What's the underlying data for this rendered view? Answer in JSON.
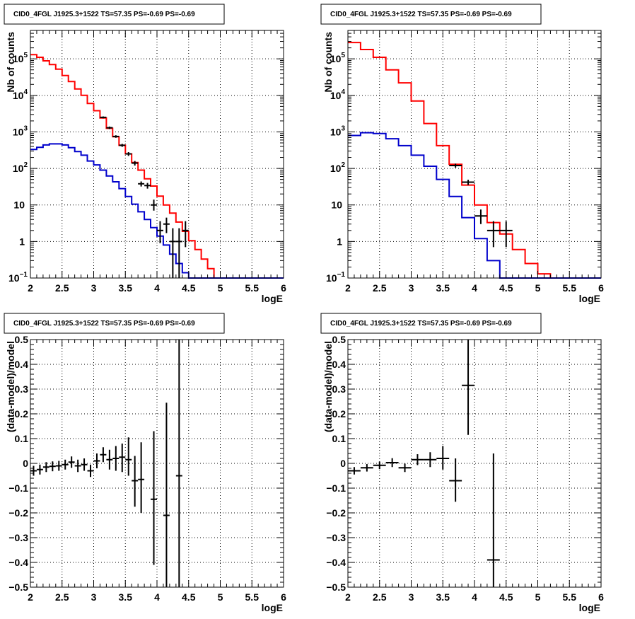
{
  "chart_data": [
    {
      "type": "line",
      "title": "CID0_4FGL J1925.3+1522 TS=57.35 PS=-0.69 PS=-0.69",
      "xlabel": "logE",
      "ylabel": "Nb of counts",
      "xlim": [
        2,
        6
      ],
      "ylim": [
        0.1,
        600000
      ],
      "yscale": "log",
      "grid": true,
      "x_ticks": [
        "2",
        "2.5",
        "3",
        "3.5",
        "4",
        "4.5",
        "5",
        "5.5",
        "6"
      ],
      "y_ticks": [
        {
          "v": 0.1,
          "base": "10",
          "exp": "−1"
        },
        {
          "v": 1,
          "base": "1",
          "exp": ""
        },
        {
          "v": 10,
          "base": "10",
          "exp": ""
        },
        {
          "v": 100,
          "base": "10",
          "exp": "2"
        },
        {
          "v": 1000,
          "base": "10",
          "exp": "3"
        },
        {
          "v": 10000,
          "base": "10",
          "exp": "4"
        },
        {
          "v": 100000,
          "base": "10",
          "exp": "5"
        }
      ],
      "bin_edges": [
        2.0,
        2.1,
        2.2,
        2.3,
        2.4,
        2.5,
        2.6,
        2.7,
        2.8,
        2.9,
        3.0,
        3.1,
        3.2,
        3.3,
        3.4,
        3.5,
        3.6,
        3.7,
        3.8,
        3.9,
        4.0,
        4.1,
        4.2,
        4.3,
        4.4,
        4.5,
        4.6,
        4.7,
        4.8,
        4.9,
        5.0,
        5.1,
        5.2,
        5.3,
        5.4,
        5.5,
        5.6,
        5.7,
        5.8,
        5.9,
        6.0
      ],
      "series": [
        {
          "color": "#ff0000",
          "values": [
            130000,
            110000,
            88000,
            70000,
            52000,
            35000,
            24000,
            15000,
            10000,
            6000,
            3800,
            2400,
            1250,
            740,
            430,
            250,
            145,
            90,
            52,
            33,
            17.5,
            10,
            6,
            3.4,
            1.9,
            1.05,
            0.6,
            0.33,
            0.18,
            0.1,
            0.1,
            0.1,
            0.1,
            0.1,
            0.1,
            0.1,
            0.1,
            0.1,
            0.1,
            0.1
          ]
        },
        {
          "color": "#0000cc",
          "values": [
            330,
            380,
            440,
            470,
            470,
            440,
            370,
            290,
            230,
            160,
            125,
            90,
            62,
            43,
            28,
            17,
            10.5,
            6.5,
            4,
            2.4,
            1.4,
            0.8,
            0.45,
            0.25,
            0.14,
            0.1,
            0.1,
            0.1,
            0.1,
            0.1,
            0.1,
            0.1,
            0.1,
            0.1,
            0.1,
            0.1,
            0.1,
            0.1,
            0.1,
            0.1
          ]
        }
      ],
      "data_points": [
        {
          "x": 3.15,
          "y": 2500,
          "ylo": 2350,
          "yhi": 2650,
          "xerr": 0.05
        },
        {
          "x": 3.25,
          "y": 1300,
          "ylo": 1200,
          "yhi": 1400,
          "xerr": 0.05
        },
        {
          "x": 3.35,
          "y": 750,
          "ylo": 690,
          "yhi": 810,
          "xerr": 0.05
        },
        {
          "x": 3.45,
          "y": 430,
          "ylo": 390,
          "yhi": 470,
          "xerr": 0.05
        },
        {
          "x": 3.55,
          "y": 250,
          "ylo": 220,
          "yhi": 280,
          "xerr": 0.05
        },
        {
          "x": 3.65,
          "y": 140,
          "ylo": 120,
          "yhi": 160,
          "xerr": 0.05
        },
        {
          "x": 3.75,
          "y": 38,
          "ylo": 32,
          "yhi": 44,
          "xerr": 0.05
        },
        {
          "x": 3.85,
          "y": 34,
          "ylo": 28,
          "yhi": 40,
          "xerr": 0.05
        },
        {
          "x": 3.95,
          "y": 10,
          "ylo": 7,
          "yhi": 14,
          "xerr": 0.05
        },
        {
          "x": 4.05,
          "y": 2,
          "ylo": 0.9,
          "yhi": 3.6,
          "xerr": 0.05
        },
        {
          "x": 4.15,
          "y": 3,
          "ylo": 1.7,
          "yhi": 4.5,
          "xerr": 0.05
        },
        {
          "x": 4.25,
          "y": 1,
          "ylo": 0.1,
          "yhi": 2.3,
          "xerr": 0.05
        },
        {
          "x": 4.35,
          "y": 1,
          "ylo": 0.1,
          "yhi": 2.3,
          "xerr": 0.05
        },
        {
          "x": 4.45,
          "y": 2,
          "ylo": 0.7,
          "yhi": 3.6,
          "xerr": 0.05
        }
      ]
    },
    {
      "type": "line",
      "title": "CID0_4FGL J1925.3+1522 TS=57.35 PS=-0.69 PS=-0.69",
      "xlabel": "logE",
      "ylabel": "Nb of counts",
      "xlim": [
        2,
        6
      ],
      "ylim": [
        0.1,
        600000
      ],
      "yscale": "log",
      "grid": true,
      "x_ticks": [
        "2",
        "2.5",
        "3",
        "3.5",
        "4",
        "4.5",
        "5",
        "5.5",
        "6"
      ],
      "y_ticks": [
        {
          "v": 0.1,
          "base": "10",
          "exp": "−1"
        },
        {
          "v": 1,
          "base": "1",
          "exp": ""
        },
        {
          "v": 10,
          "base": "10",
          "exp": ""
        },
        {
          "v": 100,
          "base": "10",
          "exp": "2"
        },
        {
          "v": 1000,
          "base": "10",
          "exp": "3"
        },
        {
          "v": 10000,
          "base": "10",
          "exp": "4"
        },
        {
          "v": 100000,
          "base": "10",
          "exp": "5"
        }
      ],
      "bin_edges": [
        2.0,
        2.2,
        2.4,
        2.6,
        2.8,
        3.0,
        3.2,
        3.4,
        3.6,
        3.8,
        4.0,
        4.2,
        4.4,
        4.6,
        4.8,
        5.0,
        5.2,
        5.4,
        5.6,
        5.8,
        6.0
      ],
      "series": [
        {
          "color": "#ff0000",
          "values": [
            280000,
            180000,
            110000,
            50000,
            22000,
            7000,
            1700,
            420,
            130,
            35,
            10,
            3.3,
            1.6,
            0.6,
            0.25,
            0.13,
            0.1,
            0.1,
            0.1,
            0.1
          ]
        },
        {
          "color": "#0000cc",
          "values": [
            800,
            950,
            900,
            650,
            420,
            230,
            115,
            50,
            17,
            4.5,
            1.2,
            0.3,
            0.1,
            0.1,
            0.1,
            0.1,
            0.1,
            0.1,
            0.1,
            0.1
          ]
        }
      ],
      "data_points": [
        {
          "x": 3.7,
          "y": 120,
          "ylo": 105,
          "yhi": 135,
          "xerr": 0.1
        },
        {
          "x": 3.9,
          "y": 42,
          "ylo": 35,
          "yhi": 49,
          "xerr": 0.1
        },
        {
          "x": 4.1,
          "y": 5,
          "ylo": 3,
          "yhi": 7.5,
          "xerr": 0.1
        },
        {
          "x": 4.3,
          "y": 2,
          "ylo": 0.7,
          "yhi": 3.6,
          "xerr": 0.1
        },
        {
          "x": 4.5,
          "y": 2,
          "ylo": 0.7,
          "yhi": 3.6,
          "xerr": 0.1
        }
      ]
    },
    {
      "type": "scatter",
      "title": "CID0_4FGL J1925.3+1522 TS=57.35 PS=-0.69 PS=-0.69",
      "xlabel": "logE",
      "ylabel": "(data-model)/model",
      "xlim": [
        2,
        6
      ],
      "ylim": [
        -0.5,
        0.5
      ],
      "grid": true,
      "x_ticks": [
        "2",
        "2.5",
        "3",
        "3.5",
        "4",
        "4.5",
        "5",
        "5.5",
        "6"
      ],
      "y_ticks": [
        {
          "v": -0.5,
          "label": "−0.5"
        },
        {
          "v": -0.4,
          "label": "−0.4"
        },
        {
          "v": -0.3,
          "label": "−0.3"
        },
        {
          "v": -0.2,
          "label": "−0.2"
        },
        {
          "v": -0.1,
          "label": "−0.1"
        },
        {
          "v": 0,
          "label": "0"
        },
        {
          "v": 0.1,
          "label": "0.1"
        },
        {
          "v": 0.2,
          "label": "0.2"
        },
        {
          "v": 0.3,
          "label": "0.3"
        },
        {
          "v": 0.4,
          "label": "0.4"
        },
        {
          "v": 0.5,
          "label": "0.5"
        }
      ],
      "data_points": [
        {
          "x": 2.05,
          "y": -0.03,
          "ylo": -0.05,
          "yhi": -0.01,
          "xerr": 0.05
        },
        {
          "x": 2.15,
          "y": -0.025,
          "ylo": -0.045,
          "yhi": -0.005,
          "xerr": 0.05
        },
        {
          "x": 2.25,
          "y": -0.015,
          "ylo": -0.035,
          "yhi": 0.005,
          "xerr": 0.05
        },
        {
          "x": 2.35,
          "y": -0.012,
          "ylo": -0.032,
          "yhi": 0.008,
          "xerr": 0.05
        },
        {
          "x": 2.45,
          "y": -0.01,
          "ylo": -0.03,
          "yhi": 0.01,
          "xerr": 0.05
        },
        {
          "x": 2.55,
          "y": -0.005,
          "ylo": -0.025,
          "yhi": 0.015,
          "xerr": 0.05
        },
        {
          "x": 2.65,
          "y": 0.005,
          "ylo": -0.018,
          "yhi": 0.028,
          "xerr": 0.05
        },
        {
          "x": 2.75,
          "y": -0.01,
          "ylo": -0.035,
          "yhi": 0.015,
          "xerr": 0.05
        },
        {
          "x": 2.85,
          "y": -0.005,
          "ylo": -0.03,
          "yhi": 0.02,
          "xerr": 0.05
        },
        {
          "x": 2.95,
          "y": -0.03,
          "ylo": -0.055,
          "yhi": -0.005,
          "xerr": 0.05
        },
        {
          "x": 3.05,
          "y": 0.01,
          "ylo": -0.02,
          "yhi": 0.04,
          "xerr": 0.05
        },
        {
          "x": 3.15,
          "y": 0.035,
          "ylo": 0.005,
          "yhi": 0.065,
          "xerr": 0.05
        },
        {
          "x": 3.25,
          "y": 0.015,
          "ylo": -0.025,
          "yhi": 0.055,
          "xerr": 0.05
        },
        {
          "x": 3.35,
          "y": 0.02,
          "ylo": -0.03,
          "yhi": 0.07,
          "xerr": 0.05
        },
        {
          "x": 3.45,
          "y": 0.025,
          "ylo": -0.035,
          "yhi": 0.08,
          "xerr": 0.05
        },
        {
          "x": 3.55,
          "y": 0.015,
          "ylo": -0.05,
          "yhi": 0.105,
          "xerr": 0.05
        },
        {
          "x": 3.65,
          "y": -0.07,
          "ylo": -0.175,
          "yhi": 0.03,
          "xerr": 0.05
        },
        {
          "x": 3.75,
          "y": -0.065,
          "ylo": -0.2,
          "yhi": 0.085,
          "xerr": 0.05
        },
        {
          "x": 3.95,
          "y": -0.145,
          "ylo": -0.41,
          "yhi": 0.13,
          "xerr": 0.05
        },
        {
          "x": 4.15,
          "y": -0.21,
          "ylo": -0.5,
          "yhi": 0.245,
          "xerr": 0.05
        },
        {
          "x": 4.35,
          "y": -0.05,
          "ylo": -0.5,
          "yhi": 0.5,
          "xerr": 0.05
        }
      ]
    },
    {
      "type": "scatter",
      "title": "CID0_4FGL J1925.3+1522 TS=57.35 PS=-0.69 PS=-0.69",
      "xlabel": "logE",
      "ylabel": "(data-model)/model",
      "xlim": [
        2,
        6
      ],
      "ylim": [
        -0.5,
        0.5
      ],
      "grid": true,
      "x_ticks": [
        "2",
        "2.5",
        "3",
        "3.5",
        "4",
        "4.5",
        "5",
        "5.5",
        "6"
      ],
      "y_ticks": [
        {
          "v": -0.5,
          "label": "−0.5"
        },
        {
          "v": -0.4,
          "label": "−0.4"
        },
        {
          "v": -0.3,
          "label": "−0.3"
        },
        {
          "v": -0.2,
          "label": "−0.2"
        },
        {
          "v": -0.1,
          "label": "−0.1"
        },
        {
          "v": 0,
          "label": "0"
        },
        {
          "v": 0.1,
          "label": "0.1"
        },
        {
          "v": 0.2,
          "label": "0.2"
        },
        {
          "v": 0.3,
          "label": "0.3"
        },
        {
          "v": 0.4,
          "label": "0.4"
        },
        {
          "v": 0.5,
          "label": "0.5"
        }
      ],
      "data_points": [
        {
          "x": 2.1,
          "y": -0.03,
          "ylo": -0.045,
          "yhi": -0.015,
          "xerr": 0.1
        },
        {
          "x": 2.3,
          "y": -0.018,
          "ylo": -0.033,
          "yhi": -0.003,
          "xerr": 0.1
        },
        {
          "x": 2.5,
          "y": -0.008,
          "ylo": -0.023,
          "yhi": 0.007,
          "xerr": 0.1
        },
        {
          "x": 2.7,
          "y": 0.003,
          "ylo": -0.015,
          "yhi": 0.021,
          "xerr": 0.1
        },
        {
          "x": 2.9,
          "y": -0.018,
          "ylo": -0.035,
          "yhi": -0.001,
          "xerr": 0.1
        },
        {
          "x": 3.1,
          "y": 0.015,
          "ylo": -0.007,
          "yhi": 0.037,
          "xerr": 0.1
        },
        {
          "x": 3.3,
          "y": 0.015,
          "ylo": -0.015,
          "yhi": 0.045,
          "xerr": 0.1
        },
        {
          "x": 3.5,
          "y": 0.02,
          "ylo": -0.025,
          "yhi": 0.07,
          "xerr": 0.1
        },
        {
          "x": 3.7,
          "y": -0.07,
          "ylo": -0.155,
          "yhi": 0.02,
          "xerr": 0.1
        },
        {
          "x": 3.9,
          "y": 0.315,
          "ylo": 0.115,
          "yhi": 0.5,
          "xerr": 0.1
        },
        {
          "x": 4.3,
          "y": -0.39,
          "ylo": -0.5,
          "yhi": 0.04,
          "xerr": 0.1
        }
      ]
    }
  ]
}
